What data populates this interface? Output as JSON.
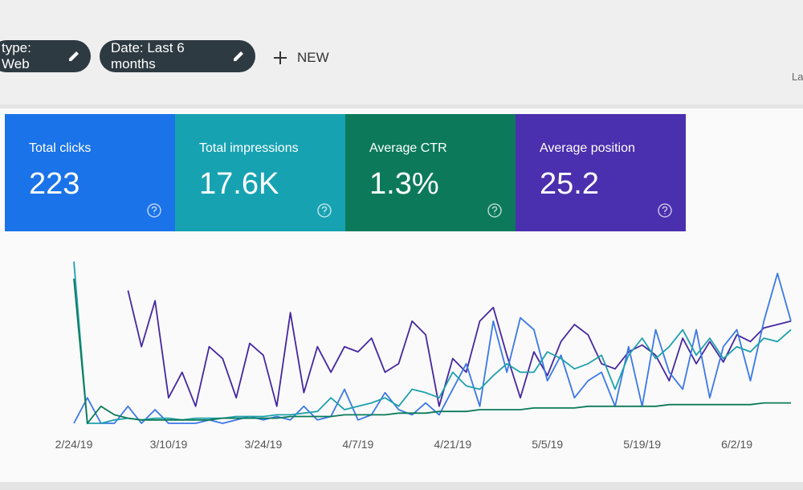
{
  "filters": [
    {
      "label": "type: Web"
    },
    {
      "label": "Date: Last 6 months"
    }
  ],
  "new_button": "NEW",
  "corner_text": "La",
  "cards": [
    {
      "label": "Total clicks",
      "value": "223",
      "color": "#1a73e8"
    },
    {
      "label": "Total impressions",
      "value": "17.6K",
      "color": "#17a2b2"
    },
    {
      "label": "Average CTR",
      "value": "1.3%",
      "color": "#0c7a5a"
    },
    {
      "label": "Average position",
      "value": "25.2",
      "color": "#4a2fae"
    }
  ],
  "chart_data": {
    "type": "line",
    "categories": [
      "2/24/19",
      null,
      null,
      null,
      null,
      null,
      null,
      "3/10/19",
      null,
      null,
      null,
      null,
      null,
      null,
      "3/24/19",
      null,
      null,
      null,
      null,
      null,
      null,
      "4/7/19",
      null,
      null,
      null,
      null,
      null,
      null,
      "4/21/19",
      null,
      null,
      null,
      null,
      null,
      null,
      "5/5/19",
      null,
      null,
      null,
      null,
      null,
      null,
      "5/19/19",
      null,
      null,
      null,
      null,
      null,
      null,
      "6/2/19",
      null,
      null,
      null,
      null
    ],
    "ylim": [
      0,
      100
    ],
    "series": [
      {
        "color": "#4527a0",
        "values": [
          null,
          null,
          null,
          null,
          78,
          45,
          72,
          15,
          30,
          10,
          45,
          38,
          15,
          47,
          40,
          10,
          65,
          18,
          45,
          30,
          45,
          42,
          50,
          30,
          35,
          60,
          52,
          10,
          38,
          30,
          60,
          68,
          40,
          15,
          42,
          28,
          48,
          58,
          52,
          35,
          32,
          42,
          46,
          40,
          25,
          50,
          35,
          48,
          36,
          52,
          48,
          56,
          58,
          60
        ]
      },
      {
        "color": "#3b78e7",
        "values": [
          0,
          15,
          0,
          0,
          10,
          0,
          8,
          0,
          0,
          0,
          2,
          0,
          2,
          4,
          2,
          4,
          2,
          10,
          2,
          4,
          20,
          2,
          5,
          18,
          8,
          5,
          12,
          5,
          20,
          35,
          10,
          60,
          30,
          62,
          55,
          25,
          40,
          15,
          25,
          30,
          10,
          45,
          10,
          55,
          30,
          20,
          55,
          15,
          45,
          55,
          25,
          60,
          88,
          60
        ]
      },
      {
        "color": "#1ea0ac",
        "values": [
          95,
          0,
          0,
          2,
          3,
          2,
          3,
          3,
          2,
          3,
          3,
          3,
          4,
          4,
          4,
          5,
          5,
          6,
          7,
          15,
          8,
          10,
          12,
          15,
          10,
          20,
          18,
          15,
          30,
          22,
          20,
          28,
          35,
          30,
          30,
          42,
          38,
          32,
          35,
          40,
          20,
          40,
          50,
          38,
          45,
          55,
          40,
          50,
          38,
          45,
          42,
          50,
          48,
          55
        ]
      },
      {
        "color": "#0b7a58",
        "values": [
          85,
          0,
          10,
          5,
          3,
          2,
          2,
          2,
          2,
          2,
          2,
          3,
          3,
          3,
          3,
          3,
          4,
          4,
          4,
          4,
          5,
          5,
          5,
          5,
          6,
          6,
          6,
          7,
          7,
          7,
          8,
          8,
          8,
          8,
          9,
          9,
          9,
          9,
          10,
          10,
          10,
          10,
          10,
          10,
          11,
          11,
          11,
          11,
          11,
          11,
          11,
          12,
          12,
          12
        ]
      }
    ]
  }
}
